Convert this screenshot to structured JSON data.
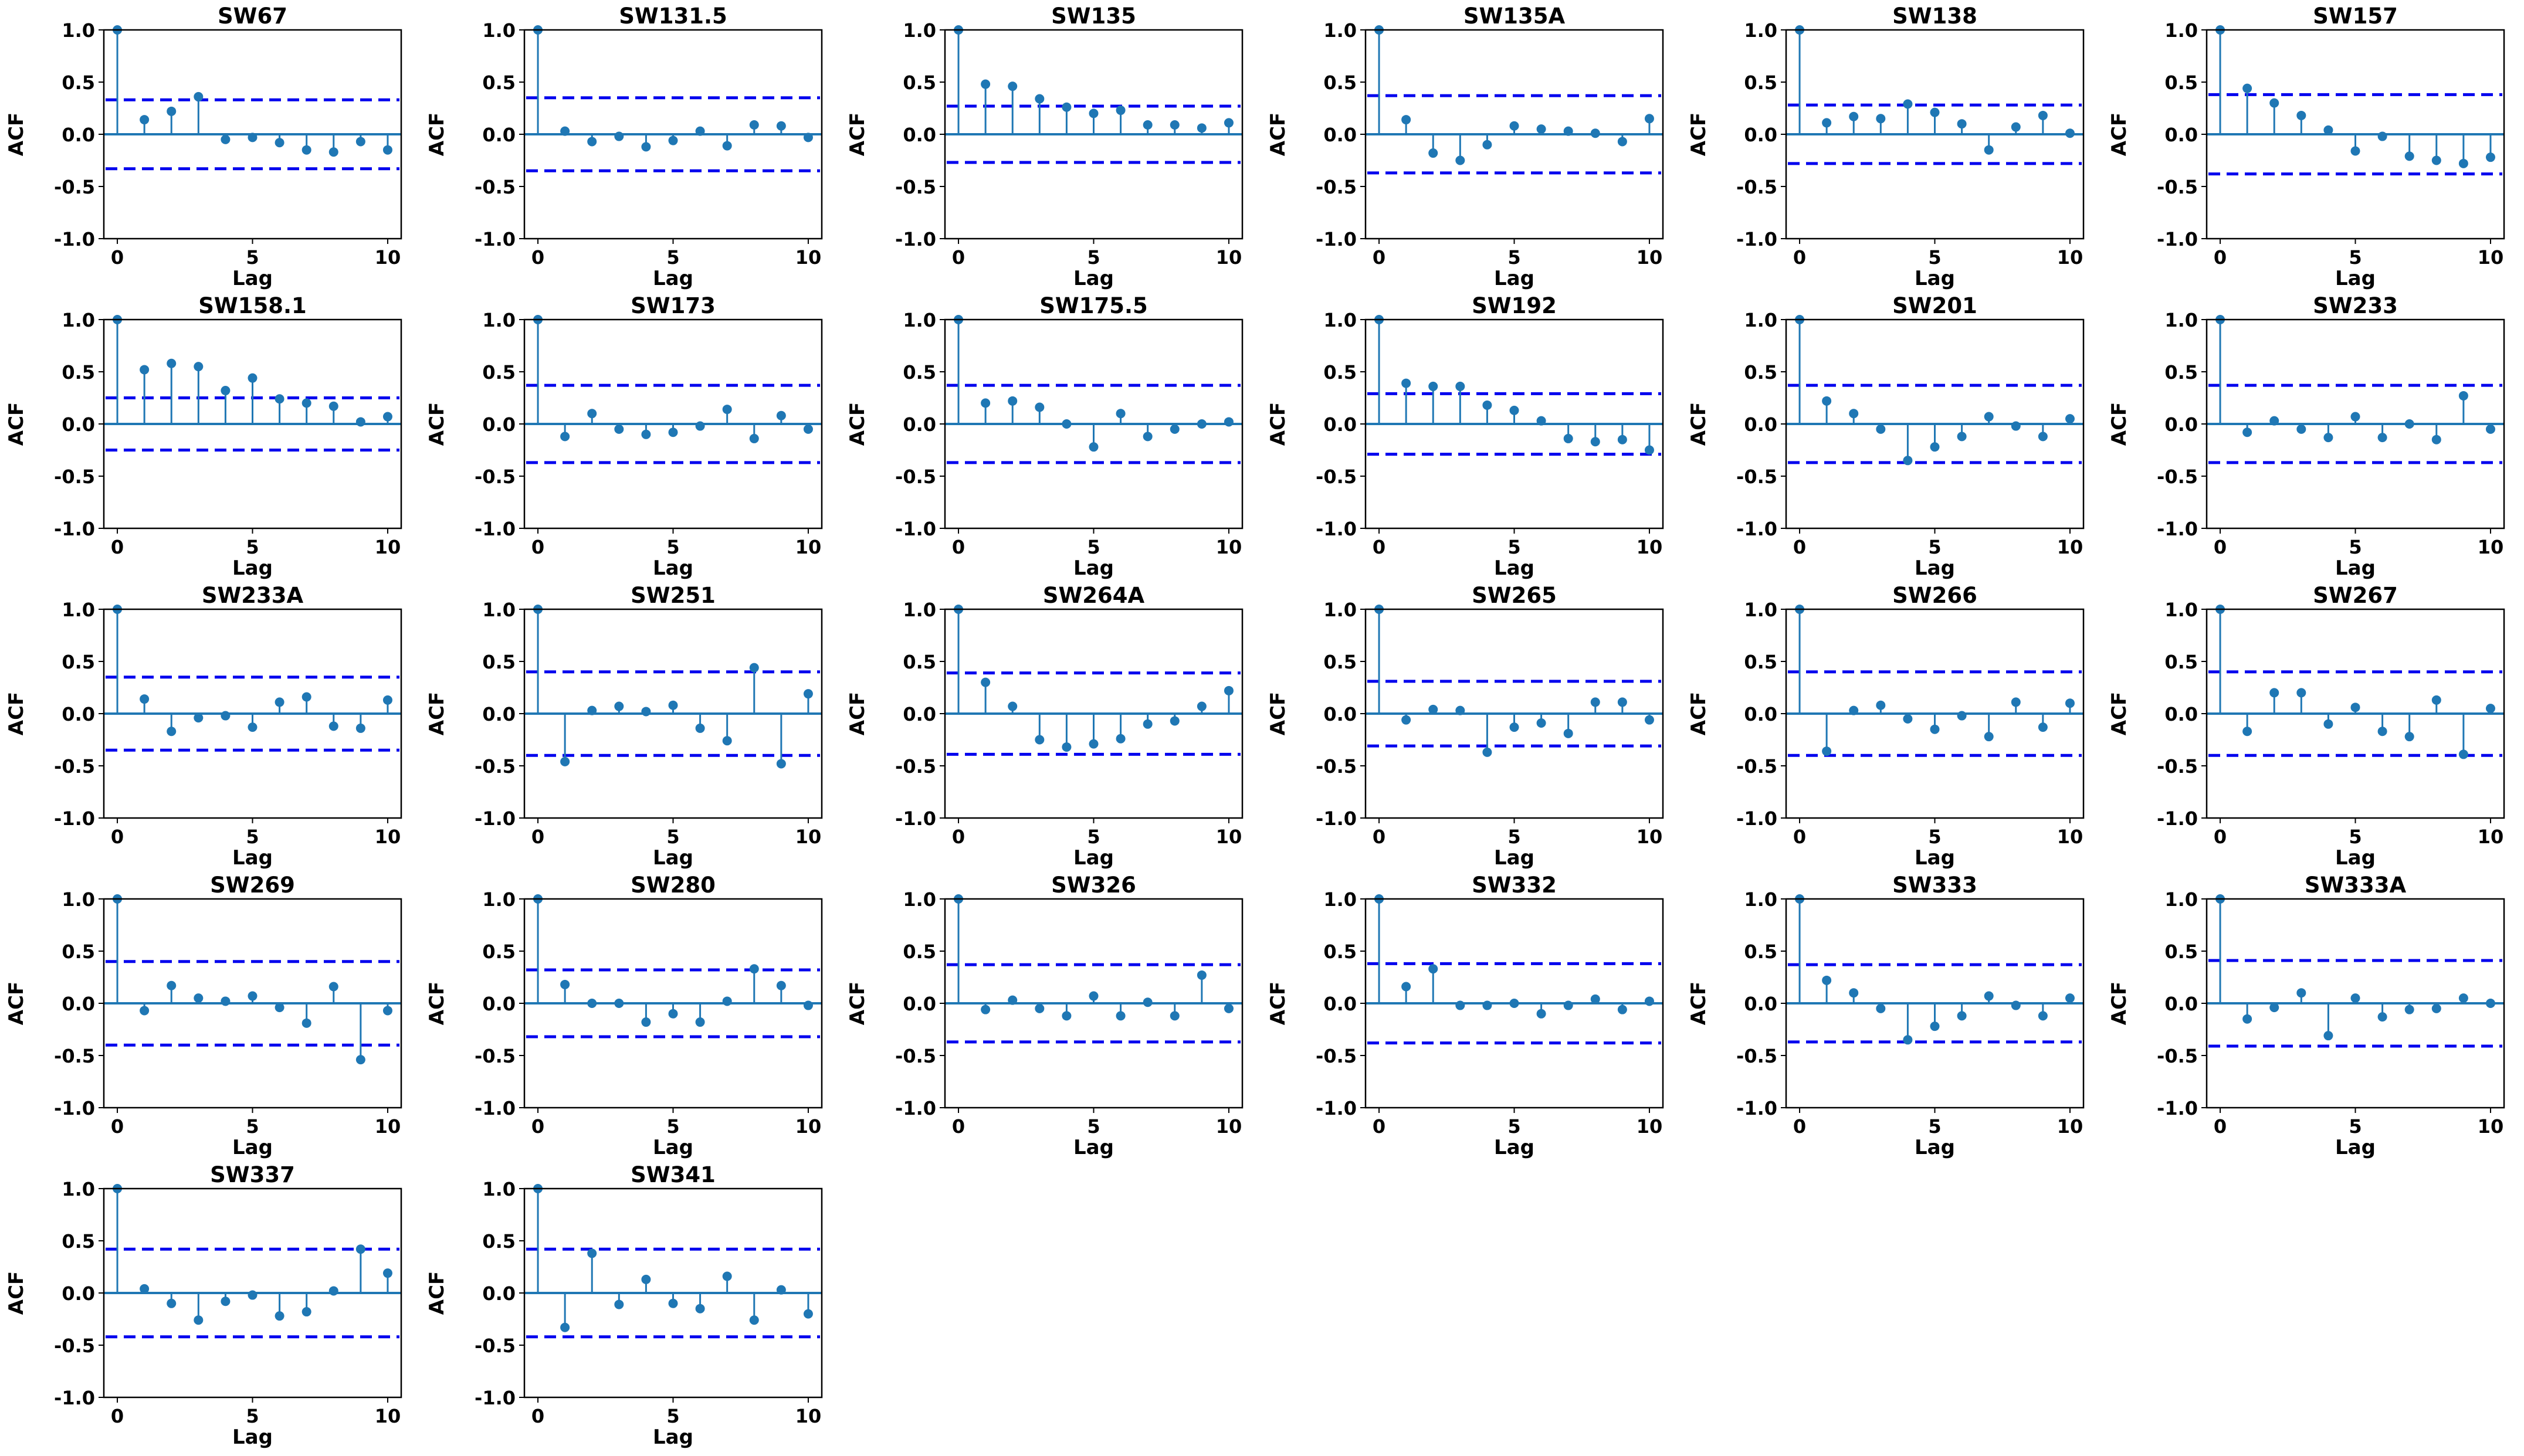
{
  "figure": {
    "accent_color": "#1f77b4",
    "confidence_color": "#0000ee"
  },
  "chart_data": [
    {
      "type": "stem",
      "title": "SW67",
      "xlabel": "Lag",
      "ylabel": "ACF",
      "xticks": [
        0,
        5,
        10
      ],
      "yticks": [
        -1.0,
        -0.5,
        0.0,
        0.5,
        1.0
      ],
      "ylim": [
        -1,
        1
      ],
      "xlim": [
        -0.5,
        10.5
      ],
      "x": [
        0,
        1,
        2,
        3,
        4,
        5,
        6,
        7,
        8,
        9,
        10
      ],
      "values": [
        1.0,
        0.14,
        0.22,
        0.36,
        -0.05,
        -0.03,
        -0.08,
        -0.15,
        -0.17,
        -0.07,
        -0.15
      ],
      "conf_band": 0.33
    },
    {
      "type": "stem",
      "title": "SW131.5",
      "xlabel": "Lag",
      "ylabel": "ACF",
      "xticks": [
        0,
        5,
        10
      ],
      "yticks": [
        -1.0,
        -0.5,
        0.0,
        0.5,
        1.0
      ],
      "ylim": [
        -1,
        1
      ],
      "xlim": [
        -0.5,
        10.5
      ],
      "x": [
        0,
        1,
        2,
        3,
        4,
        5,
        6,
        7,
        8,
        9,
        10
      ],
      "values": [
        1.0,
        0.03,
        -0.07,
        -0.02,
        -0.12,
        -0.06,
        0.03,
        -0.11,
        0.09,
        0.08,
        -0.03
      ],
      "conf_band": 0.35
    },
    {
      "type": "stem",
      "title": "SW135",
      "xlabel": "Lag",
      "ylabel": "ACF",
      "xticks": [
        0,
        5,
        10
      ],
      "yticks": [
        -1.0,
        -0.5,
        0.0,
        0.5,
        1.0
      ],
      "ylim": [
        -1,
        1
      ],
      "xlim": [
        -0.5,
        10.5
      ],
      "x": [
        0,
        1,
        2,
        3,
        4,
        5,
        6,
        7,
        8,
        9,
        10
      ],
      "values": [
        1.0,
        0.48,
        0.46,
        0.34,
        0.26,
        0.2,
        0.23,
        0.09,
        0.09,
        0.06,
        0.11
      ],
      "conf_band": 0.27
    },
    {
      "type": "stem",
      "title": "SW135A",
      "xlabel": "Lag",
      "ylabel": "ACF",
      "xticks": [
        0,
        5,
        10
      ],
      "yticks": [
        -1.0,
        -0.5,
        0.0,
        0.5,
        1.0
      ],
      "ylim": [
        -1,
        1
      ],
      "xlim": [
        -0.5,
        10.5
      ],
      "x": [
        0,
        1,
        2,
        3,
        4,
        5,
        6,
        7,
        8,
        9,
        10
      ],
      "values": [
        1.0,
        0.14,
        -0.18,
        -0.25,
        -0.1,
        0.08,
        0.05,
        0.03,
        0.01,
        -0.07,
        0.15
      ],
      "conf_band": 0.37
    },
    {
      "type": "stem",
      "title": "SW138",
      "xlabel": "Lag",
      "ylabel": "ACF",
      "xticks": [
        0,
        5,
        10
      ],
      "yticks": [
        -1.0,
        -0.5,
        0.0,
        0.5,
        1.0
      ],
      "ylim": [
        -1,
        1
      ],
      "xlim": [
        -0.5,
        10.5
      ],
      "x": [
        0,
        1,
        2,
        3,
        4,
        5,
        6,
        7,
        8,
        9,
        10
      ],
      "values": [
        1.0,
        0.11,
        0.17,
        0.15,
        0.29,
        0.21,
        0.1,
        -0.15,
        0.07,
        0.18,
        0.01
      ],
      "conf_band": 0.28
    },
    {
      "type": "stem",
      "title": "SW157",
      "xlabel": "Lag",
      "ylabel": "ACF",
      "xticks": [
        0,
        5,
        10
      ],
      "yticks": [
        -1.0,
        -0.5,
        0.0,
        0.5,
        1.0
      ],
      "ylim": [
        -1,
        1
      ],
      "xlim": [
        -0.5,
        10.5
      ],
      "x": [
        0,
        1,
        2,
        3,
        4,
        5,
        6,
        7,
        8,
        9,
        10
      ],
      "values": [
        1.0,
        0.44,
        0.3,
        0.18,
        0.04,
        -0.16,
        -0.02,
        -0.21,
        -0.25,
        -0.28,
        -0.22
      ],
      "conf_band": 0.38
    },
    {
      "type": "stem",
      "title": "SW158.1",
      "xlabel": "Lag",
      "ylabel": "ACF",
      "xticks": [
        0,
        5,
        10
      ],
      "yticks": [
        -1.0,
        -0.5,
        0.0,
        0.5,
        1.0
      ],
      "ylim": [
        -1,
        1
      ],
      "xlim": [
        -0.5,
        10.5
      ],
      "x": [
        0,
        1,
        2,
        3,
        4,
        5,
        6,
        7,
        8,
        9,
        10
      ],
      "values": [
        1.0,
        0.52,
        0.58,
        0.55,
        0.32,
        0.44,
        0.24,
        0.2,
        0.17,
        0.02,
        0.07
      ],
      "conf_band": 0.25
    },
    {
      "type": "stem",
      "title": "SW173",
      "xlabel": "Lag",
      "ylabel": "ACF",
      "xticks": [
        0,
        5,
        10
      ],
      "yticks": [
        -1.0,
        -0.5,
        0.0,
        0.5,
        1.0
      ],
      "ylim": [
        -1,
        1
      ],
      "xlim": [
        -0.5,
        10.5
      ],
      "x": [
        0,
        1,
        2,
        3,
        4,
        5,
        6,
        7,
        8,
        9,
        10
      ],
      "values": [
        1.0,
        -0.12,
        0.1,
        -0.05,
        -0.1,
        -0.08,
        -0.02,
        0.14,
        -0.14,
        0.08,
        -0.05
      ],
      "conf_band": 0.37
    },
    {
      "type": "stem",
      "title": "SW175.5",
      "xlabel": "Lag",
      "ylabel": "ACF",
      "xticks": [
        0,
        5,
        10
      ],
      "yticks": [
        -1.0,
        -0.5,
        0.0,
        0.5,
        1.0
      ],
      "ylim": [
        -1,
        1
      ],
      "xlim": [
        -0.5,
        10.5
      ],
      "x": [
        0,
        1,
        2,
        3,
        4,
        5,
        6,
        7,
        8,
        9,
        10
      ],
      "values": [
        1.0,
        0.2,
        0.22,
        0.16,
        0.0,
        -0.22,
        0.1,
        -0.12,
        -0.05,
        0.0,
        0.02
      ],
      "conf_band": 0.37
    },
    {
      "type": "stem",
      "title": "SW192",
      "xlabel": "Lag",
      "ylabel": "ACF",
      "xticks": [
        0,
        5,
        10
      ],
      "yticks": [
        -1.0,
        -0.5,
        0.0,
        0.5,
        1.0
      ],
      "ylim": [
        -1,
        1
      ],
      "xlim": [
        -0.5,
        10.5
      ],
      "x": [
        0,
        1,
        2,
        3,
        4,
        5,
        6,
        7,
        8,
        9,
        10
      ],
      "values": [
        1.0,
        0.39,
        0.36,
        0.36,
        0.18,
        0.13,
        0.03,
        -0.14,
        -0.17,
        -0.15,
        -0.25
      ],
      "conf_band": 0.29
    },
    {
      "type": "stem",
      "title": "SW201",
      "xlabel": "Lag",
      "ylabel": "ACF",
      "xticks": [
        0,
        5,
        10
      ],
      "yticks": [
        -1.0,
        -0.5,
        0.0,
        0.5,
        1.0
      ],
      "ylim": [
        -1,
        1
      ],
      "xlim": [
        -0.5,
        10.5
      ],
      "x": [
        0,
        1,
        2,
        3,
        4,
        5,
        6,
        7,
        8,
        9,
        10
      ],
      "values": [
        1.0,
        0.22,
        0.1,
        -0.05,
        -0.35,
        -0.22,
        -0.12,
        0.07,
        -0.02,
        -0.12,
        0.05
      ],
      "conf_band": 0.37
    },
    {
      "type": "stem",
      "title": "SW233",
      "xlabel": "Lag",
      "ylabel": "ACF",
      "xticks": [
        0,
        5,
        10
      ],
      "yticks": [
        -1.0,
        -0.5,
        0.0,
        0.5,
        1.0
      ],
      "ylim": [
        -1,
        1
      ],
      "xlim": [
        -0.5,
        10.5
      ],
      "x": [
        0,
        1,
        2,
        3,
        4,
        5,
        6,
        7,
        8,
        9,
        10
      ],
      "values": [
        1.0,
        -0.08,
        0.03,
        -0.05,
        -0.13,
        0.07,
        -0.13,
        0.0,
        -0.15,
        0.27,
        -0.05
      ],
      "conf_band": 0.37
    },
    {
      "type": "stem",
      "title": "SW233A",
      "xlabel": "Lag",
      "ylabel": "ACF",
      "xticks": [
        0,
        5,
        10
      ],
      "yticks": [
        -1.0,
        -0.5,
        0.0,
        0.5,
        1.0
      ],
      "ylim": [
        -1,
        1
      ],
      "xlim": [
        -0.5,
        10.5
      ],
      "x": [
        0,
        1,
        2,
        3,
        4,
        5,
        6,
        7,
        8,
        9,
        10
      ],
      "values": [
        1.0,
        0.14,
        -0.17,
        -0.04,
        -0.02,
        -0.13,
        0.11,
        0.16,
        -0.12,
        -0.14,
        0.13
      ],
      "conf_band": 0.35
    },
    {
      "type": "stem",
      "title": "SW251",
      "xlabel": "Lag",
      "ylabel": "ACF",
      "xticks": [
        0,
        5,
        10
      ],
      "yticks": [
        -1.0,
        -0.5,
        0.0,
        0.5,
        1.0
      ],
      "ylim": [
        -1,
        1
      ],
      "xlim": [
        -0.5,
        10.5
      ],
      "x": [
        0,
        1,
        2,
        3,
        4,
        5,
        6,
        7,
        8,
        9,
        10
      ],
      "values": [
        1.0,
        -0.46,
        0.03,
        0.07,
        0.02,
        0.08,
        -0.14,
        -0.26,
        0.44,
        -0.48,
        0.19
      ],
      "conf_band": 0.4
    },
    {
      "type": "stem",
      "title": "SW264A",
      "xlabel": "Lag",
      "ylabel": "ACF",
      "xticks": [
        0,
        5,
        10
      ],
      "yticks": [
        -1.0,
        -0.5,
        0.0,
        0.5,
        1.0
      ],
      "ylim": [
        -1,
        1
      ],
      "xlim": [
        -0.5,
        10.5
      ],
      "x": [
        0,
        1,
        2,
        3,
        4,
        5,
        6,
        7,
        8,
        9,
        10
      ],
      "values": [
        1.0,
        0.3,
        0.07,
        -0.25,
        -0.32,
        -0.29,
        -0.24,
        -0.1,
        -0.07,
        0.07,
        0.22
      ],
      "conf_band": 0.39
    },
    {
      "type": "stem",
      "title": "SW265",
      "xlabel": "Lag",
      "ylabel": "ACF",
      "xticks": [
        0,
        5,
        10
      ],
      "yticks": [
        -1.0,
        -0.5,
        0.0,
        0.5,
        1.0
      ],
      "ylim": [
        -1,
        1
      ],
      "xlim": [
        -0.5,
        10.5
      ],
      "x": [
        0,
        1,
        2,
        3,
        4,
        5,
        6,
        7,
        8,
        9,
        10
      ],
      "values": [
        1.0,
        -0.06,
        0.04,
        0.03,
        -0.37,
        -0.13,
        -0.09,
        -0.19,
        0.11,
        0.11,
        -0.06
      ],
      "conf_band": 0.31
    },
    {
      "type": "stem",
      "title": "SW266",
      "xlabel": "Lag",
      "ylabel": "ACF",
      "xticks": [
        0,
        5,
        10
      ],
      "yticks": [
        -1.0,
        -0.5,
        0.0,
        0.5,
        1.0
      ],
      "ylim": [
        -1,
        1
      ],
      "xlim": [
        -0.5,
        10.5
      ],
      "x": [
        0,
        1,
        2,
        3,
        4,
        5,
        6,
        7,
        8,
        9,
        10
      ],
      "values": [
        1.0,
        -0.36,
        0.03,
        0.08,
        -0.05,
        -0.15,
        -0.02,
        -0.22,
        0.11,
        -0.13,
        0.1
      ],
      "conf_band": 0.4
    },
    {
      "type": "stem",
      "title": "SW267",
      "xlabel": "Lag",
      "ylabel": "ACF",
      "xticks": [
        0,
        5,
        10
      ],
      "yticks": [
        -1.0,
        -0.5,
        0.0,
        0.5,
        1.0
      ],
      "ylim": [
        -1,
        1
      ],
      "xlim": [
        -0.5,
        10.5
      ],
      "x": [
        0,
        1,
        2,
        3,
        4,
        5,
        6,
        7,
        8,
        9,
        10
      ],
      "values": [
        1.0,
        -0.17,
        0.2,
        0.2,
        -0.1,
        0.06,
        -0.17,
        -0.22,
        0.13,
        -0.39,
        0.05
      ],
      "conf_band": 0.4
    },
    {
      "type": "stem",
      "title": "SW269",
      "xlabel": "Lag",
      "ylabel": "ACF",
      "xticks": [
        0,
        5,
        10
      ],
      "yticks": [
        -1.0,
        -0.5,
        0.0,
        0.5,
        1.0
      ],
      "ylim": [
        -1,
        1
      ],
      "xlim": [
        -0.5,
        10.5
      ],
      "x": [
        0,
        1,
        2,
        3,
        4,
        5,
        6,
        7,
        8,
        9,
        10
      ],
      "values": [
        1.0,
        -0.07,
        0.17,
        0.05,
        0.02,
        0.07,
        -0.04,
        -0.19,
        0.16,
        -0.54,
        -0.07
      ],
      "conf_band": 0.4
    },
    {
      "type": "stem",
      "title": "SW280",
      "xlabel": "Lag",
      "ylabel": "ACF",
      "xticks": [
        0,
        5,
        10
      ],
      "yticks": [
        -1.0,
        -0.5,
        0.0,
        0.5,
        1.0
      ],
      "ylim": [
        -1,
        1
      ],
      "xlim": [
        -0.5,
        10.5
      ],
      "x": [
        0,
        1,
        2,
        3,
        4,
        5,
        6,
        7,
        8,
        9,
        10
      ],
      "values": [
        1.0,
        0.18,
        0.0,
        0.0,
        -0.18,
        -0.1,
        -0.18,
        0.02,
        0.33,
        0.17,
        -0.02
      ],
      "conf_band": 0.32
    },
    {
      "type": "stem",
      "title": "SW326",
      "xlabel": "Lag",
      "ylabel": "ACF",
      "xticks": [
        0,
        5,
        10
      ],
      "yticks": [
        -1.0,
        -0.5,
        0.0,
        0.5,
        1.0
      ],
      "ylim": [
        -1,
        1
      ],
      "xlim": [
        -0.5,
        10.5
      ],
      "x": [
        0,
        1,
        2,
        3,
        4,
        5,
        6,
        7,
        8,
        9,
        10
      ],
      "values": [
        1.0,
        -0.06,
        0.03,
        -0.05,
        -0.12,
        0.07,
        -0.12,
        0.01,
        -0.12,
        0.27,
        -0.05
      ],
      "conf_band": 0.37
    },
    {
      "type": "stem",
      "title": "SW332",
      "xlabel": "Lag",
      "ylabel": "ACF",
      "xticks": [
        0,
        5,
        10
      ],
      "yticks": [
        -1.0,
        -0.5,
        0.0,
        0.5,
        1.0
      ],
      "ylim": [
        -1,
        1
      ],
      "xlim": [
        -0.5,
        10.5
      ],
      "x": [
        0,
        1,
        2,
        3,
        4,
        5,
        6,
        7,
        8,
        9,
        10
      ],
      "values": [
        1.0,
        0.16,
        0.33,
        -0.02,
        -0.02,
        0.0,
        -0.1,
        -0.02,
        0.04,
        -0.06,
        0.02
      ],
      "conf_band": 0.38
    },
    {
      "type": "stem",
      "title": "SW333",
      "xlabel": "Lag",
      "ylabel": "ACF",
      "xticks": [
        0,
        5,
        10
      ],
      "yticks": [
        -1.0,
        -0.5,
        0.0,
        0.5,
        1.0
      ],
      "ylim": [
        -1,
        1
      ],
      "xlim": [
        -0.5,
        10.5
      ],
      "x": [
        0,
        1,
        2,
        3,
        4,
        5,
        6,
        7,
        8,
        9,
        10
      ],
      "values": [
        1.0,
        0.22,
        0.1,
        -0.05,
        -0.35,
        -0.22,
        -0.12,
        0.07,
        -0.02,
        -0.12,
        0.05
      ],
      "conf_band": 0.37
    },
    {
      "type": "stem",
      "title": "SW333A",
      "xlabel": "Lag",
      "ylabel": "ACF",
      "xticks": [
        0,
        5,
        10
      ],
      "yticks": [
        -1.0,
        -0.5,
        0.0,
        0.5,
        1.0
      ],
      "ylim": [
        -1,
        1
      ],
      "xlim": [
        -0.5,
        10.5
      ],
      "x": [
        0,
        1,
        2,
        3,
        4,
        5,
        6,
        7,
        8,
        9,
        10
      ],
      "values": [
        1.0,
        -0.15,
        -0.04,
        0.1,
        -0.31,
        0.05,
        -0.13,
        -0.06,
        -0.05,
        0.05,
        0.0
      ],
      "conf_band": 0.41
    },
    {
      "type": "stem",
      "title": "SW337",
      "xlabel": "Lag",
      "ylabel": "ACF",
      "xticks": [
        0,
        5,
        10
      ],
      "yticks": [
        -1.0,
        -0.5,
        0.0,
        0.5,
        1.0
      ],
      "ylim": [
        -1,
        1
      ],
      "xlim": [
        -0.5,
        10.5
      ],
      "x": [
        0,
        1,
        2,
        3,
        4,
        5,
        6,
        7,
        8,
        9,
        10
      ],
      "values": [
        1.0,
        0.04,
        -0.1,
        -0.26,
        -0.08,
        -0.02,
        -0.22,
        -0.18,
        0.02,
        0.42,
        0.19
      ],
      "conf_band": 0.42
    },
    {
      "type": "stem",
      "title": "SW341",
      "xlabel": "Lag",
      "ylabel": "ACF",
      "xticks": [
        0,
        5,
        10
      ],
      "yticks": [
        -1.0,
        -0.5,
        0.0,
        0.5,
        1.0
      ],
      "ylim": [
        -1,
        1
      ],
      "xlim": [
        -0.5,
        10.5
      ],
      "x": [
        0,
        1,
        2,
        3,
        4,
        5,
        6,
        7,
        8,
        9,
        10
      ],
      "values": [
        1.0,
        -0.33,
        0.38,
        -0.11,
        0.13,
        -0.1,
        -0.15,
        0.16,
        -0.26,
        0.03,
        -0.2
      ],
      "conf_band": 0.42
    }
  ]
}
